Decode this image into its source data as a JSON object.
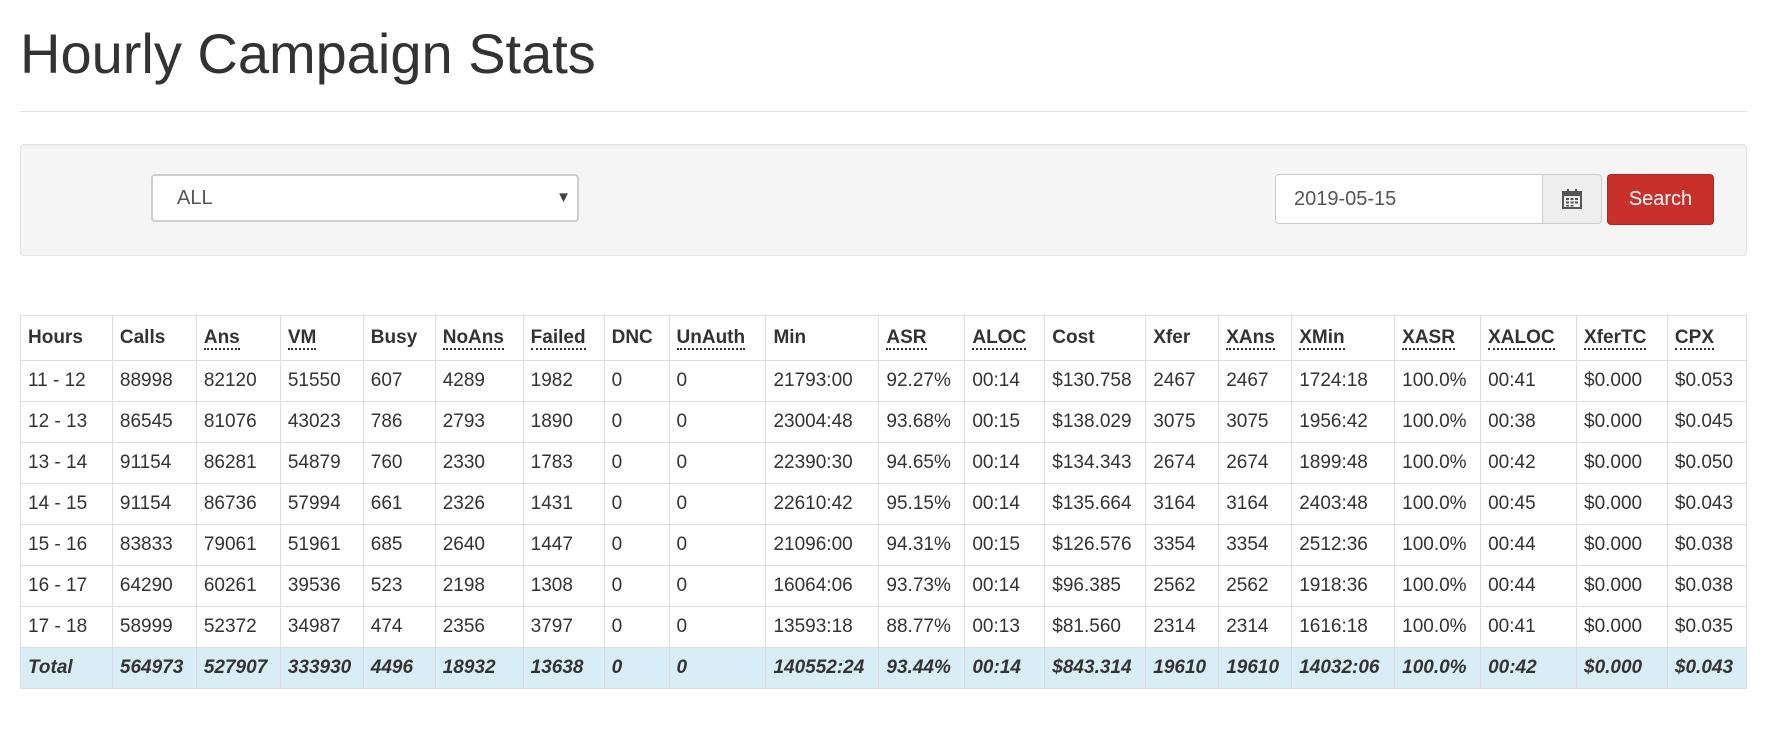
{
  "page": {
    "title": "Hourly Campaign Stats"
  },
  "filters": {
    "campaign": {
      "selected": "ALL",
      "caret_icon": "caret-down-icon"
    },
    "date": {
      "value": "2019-05-15",
      "icon": "calendar-icon"
    },
    "search_label": "Search"
  },
  "colors": {
    "search_button": "#c9302c",
    "total_row": "#d9edf7",
    "panel": "#f5f5f5"
  },
  "table": {
    "columns": [
      {
        "label": "Hours",
        "abbr": false
      },
      {
        "label": "Calls",
        "abbr": false
      },
      {
        "label": "Ans",
        "abbr": true
      },
      {
        "label": "VM",
        "abbr": true
      },
      {
        "label": "Busy",
        "abbr": false
      },
      {
        "label": "NoAns",
        "abbr": true
      },
      {
        "label": "Failed",
        "abbr": true
      },
      {
        "label": "DNC",
        "abbr": false
      },
      {
        "label": "UnAuth",
        "abbr": true
      },
      {
        "label": "Min",
        "abbr": false
      },
      {
        "label": "ASR",
        "abbr": true
      },
      {
        "label": "ALOC",
        "abbr": true
      },
      {
        "label": "Cost",
        "abbr": false
      },
      {
        "label": "Xfer",
        "abbr": false
      },
      {
        "label": "XAns",
        "abbr": true
      },
      {
        "label": "XMin",
        "abbr": true
      },
      {
        "label": "XASR",
        "abbr": true
      },
      {
        "label": "XALOC",
        "abbr": true
      },
      {
        "label": "XferTC",
        "abbr": true
      },
      {
        "label": "CPX",
        "abbr": true
      }
    ],
    "rows": [
      [
        "11 - 12",
        "88998",
        "82120",
        "51550",
        "607",
        "4289",
        "1982",
        "0",
        "0",
        "21793:00",
        "92.27%",
        "00:14",
        "$130.758",
        "2467",
        "2467",
        "1724:18",
        "100.0%",
        "00:41",
        "$0.000",
        "$0.053"
      ],
      [
        "12 - 13",
        "86545",
        "81076",
        "43023",
        "786",
        "2793",
        "1890",
        "0",
        "0",
        "23004:48",
        "93.68%",
        "00:15",
        "$138.029",
        "3075",
        "3075",
        "1956:42",
        "100.0%",
        "00:38",
        "$0.000",
        "$0.045"
      ],
      [
        "13 - 14",
        "91154",
        "86281",
        "54879",
        "760",
        "2330",
        "1783",
        "0",
        "0",
        "22390:30",
        "94.65%",
        "00:14",
        "$134.343",
        "2674",
        "2674",
        "1899:48",
        "100.0%",
        "00:42",
        "$0.000",
        "$0.050"
      ],
      [
        "14 - 15",
        "91154",
        "86736",
        "57994",
        "661",
        "2326",
        "1431",
        "0",
        "0",
        "22610:42",
        "95.15%",
        "00:14",
        "$135.664",
        "3164",
        "3164",
        "2403:48",
        "100.0%",
        "00:45",
        "$0.000",
        "$0.043"
      ],
      [
        "15 - 16",
        "83833",
        "79061",
        "51961",
        "685",
        "2640",
        "1447",
        "0",
        "0",
        "21096:00",
        "94.31%",
        "00:15",
        "$126.576",
        "3354",
        "3354",
        "2512:36",
        "100.0%",
        "00:44",
        "$0.000",
        "$0.038"
      ],
      [
        "16 - 17",
        "64290",
        "60261",
        "39536",
        "523",
        "2198",
        "1308",
        "0",
        "0",
        "16064:06",
        "93.73%",
        "00:14",
        "$96.385",
        "2562",
        "2562",
        "1918:36",
        "100.0%",
        "00:44",
        "$0.000",
        "$0.038"
      ],
      [
        "17 - 18",
        "58999",
        "52372",
        "34987",
        "474",
        "2356",
        "3797",
        "0",
        "0",
        "13593:18",
        "88.77%",
        "00:13",
        "$81.560",
        "2314",
        "2314",
        "1616:18",
        "100.0%",
        "00:41",
        "$0.000",
        "$0.035"
      ]
    ],
    "total": [
      "Total",
      "564973",
      "527907",
      "333930",
      "4496",
      "18932",
      "13638",
      "0",
      "0",
      "140552:24",
      "93.44%",
      "00:14",
      "$843.314",
      "19610",
      "19610",
      "14032:06",
      "100.0%",
      "00:42",
      "$0.000",
      "$0.043"
    ]
  }
}
